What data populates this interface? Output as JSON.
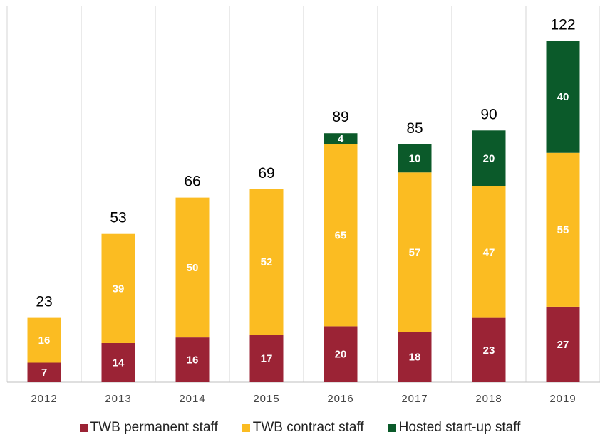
{
  "chart_data": {
    "type": "bar",
    "stacked": true,
    "categories": [
      "2012",
      "2013",
      "2014",
      "2015",
      "2016",
      "2017",
      "2018",
      "2019"
    ],
    "series": [
      {
        "name": "TWB permanent staff",
        "color": "#9B2335",
        "values": [
          7,
          14,
          16,
          17,
          20,
          18,
          23,
          27
        ]
      },
      {
        "name": "TWB contract staff",
        "color": "#FBBC22",
        "values": [
          16,
          39,
          50,
          52,
          65,
          57,
          47,
          55
        ]
      },
      {
        "name": "Hosted start-up staff",
        "color": "#0B5A2A",
        "values": [
          null,
          null,
          null,
          null,
          4,
          10,
          20,
          40
        ]
      }
    ],
    "totals": [
      "23",
      "53",
      "66",
      "69",
      "89",
      "85",
      "90",
      "122"
    ],
    "ylim": [
      0,
      128
    ],
    "grid": "vertical separators between categories",
    "legend_position": "bottom"
  }
}
